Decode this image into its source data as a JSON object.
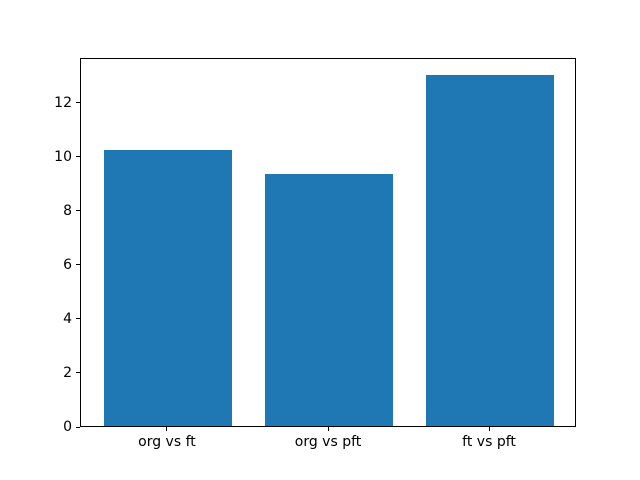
{
  "figure": {
    "background": "#ffffff"
  },
  "chart_data": {
    "type": "bar",
    "categories": [
      "org vs ft",
      "org vs pft",
      "ft vs pft"
    ],
    "values": [
      10.2,
      9.33,
      13.0
    ],
    "title": "",
    "xlabel": "",
    "ylabel": "",
    "ylim": [
      0,
      13.65
    ],
    "yticks": [
      0,
      2,
      4,
      6,
      8,
      10,
      12
    ],
    "xlim": [
      -0.54,
      2.54
    ],
    "bar_width": 0.8,
    "bar_color": "#1f77b4",
    "axis_color": "#000000",
    "grid": false,
    "legend": false
  }
}
